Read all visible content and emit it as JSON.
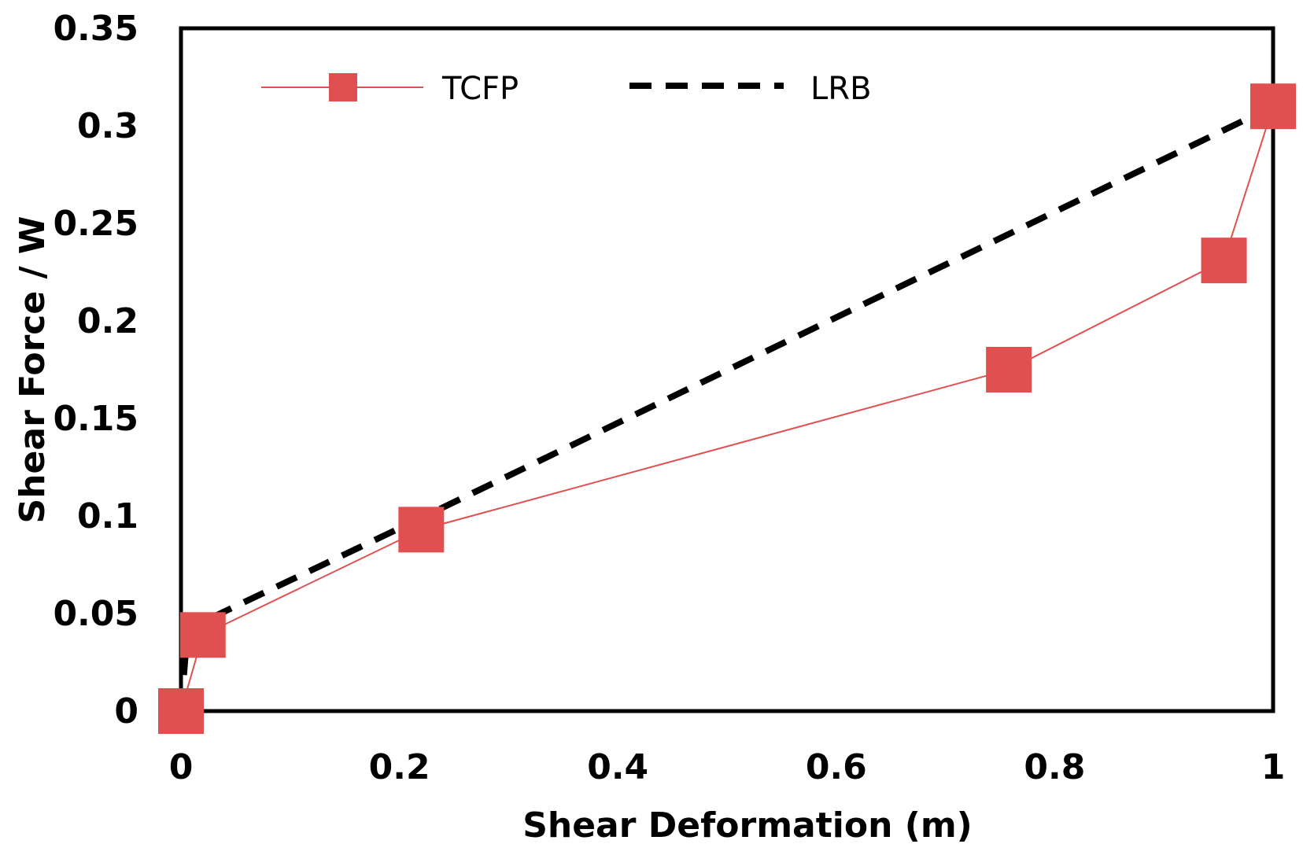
{
  "chart_data": {
    "type": "line",
    "title": "",
    "xlabel": "Shear Deformation (m)",
    "ylabel": "Shear Force / W",
    "xlim": [
      0,
      1
    ],
    "ylim": [
      0,
      0.35
    ],
    "xticks": [
      0,
      0.2,
      0.4,
      0.6,
      0.8,
      1
    ],
    "xtick_labels": [
      "0",
      "0.2",
      "0.4",
      "0.6",
      "0.8",
      "1"
    ],
    "yticks": [
      0,
      0.05,
      0.1,
      0.15,
      0.2,
      0.25,
      0.3,
      0.35
    ],
    "ytick_labels": [
      "0",
      "0.05",
      "0.1",
      "0.15",
      "0.2",
      "0.25",
      "0.3",
      "0.35"
    ],
    "grid": false,
    "legend_position": "top",
    "series": [
      {
        "name": "TCFP",
        "color": "#e05050",
        "style": "solid-with-square-markers",
        "x": [
          0.0,
          0.02,
          0.22,
          0.758,
          0.955,
          1.0
        ],
        "y": [
          0.0,
          0.039,
          0.093,
          0.175,
          0.231,
          0.31
        ]
      },
      {
        "name": "LRB",
        "color": "#000000",
        "style": "dashed",
        "x": [
          0.0,
          0.006,
          0.22,
          1.0
        ],
        "y": [
          0.0,
          0.042,
          0.099,
          0.31
        ]
      }
    ]
  }
}
